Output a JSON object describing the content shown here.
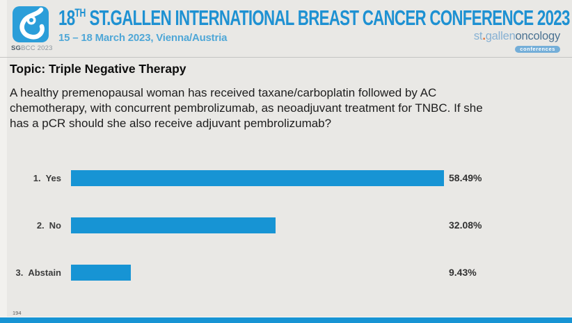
{
  "header": {
    "badge": {
      "acronym_bold": "SG",
      "acronym_rest": "BCC 2023"
    },
    "title": {
      "num": "18",
      "sup": "TH",
      "rest": " ST.GALLEN INTERNATIONAL BREAST CANCER CONFERENCE 2023"
    },
    "subtitle": "15 – 18 March 2023, Vienna/Austria",
    "brand": {
      "part1": "st",
      "dot": ".",
      "part2": "gallen",
      "part3": "oncology",
      "tag": "conferences"
    }
  },
  "topic": "Topic: Triple Negative Therapy",
  "question_lines": {
    "line1": "A healthy premenopausal woman has received taxane/carboplatin followed by AC",
    "line2": "chemotherapy, with concurrent pembrolizumab, as neoadjuvant treatment for TNBC. If she",
    "line3": "has a pCR should she also receive adjuvant pembrolizumab?"
  },
  "chart_data": {
    "type": "bar",
    "orientation": "horizontal",
    "categories": [
      {
        "num": "1.",
        "label": "Yes"
      },
      {
        "num": "2.",
        "label": "No"
      },
      {
        "num": "3.",
        "label": "Abstain"
      }
    ],
    "values": [
      58.49,
      32.08,
      9.43
    ],
    "value_labels": [
      "58.49%",
      "32.08%",
      "9.43%"
    ],
    "xlim": [
      0,
      100
    ],
    "bar_color": "#1794d4",
    "grid": false,
    "legend": false
  },
  "footer": {
    "page_number": "194"
  },
  "colors": {
    "accent_blue": "#1794d4",
    "title_blue": "#1e91d2",
    "subtitle_blue": "#4fa7d7",
    "background": "#e9e8e5"
  }
}
